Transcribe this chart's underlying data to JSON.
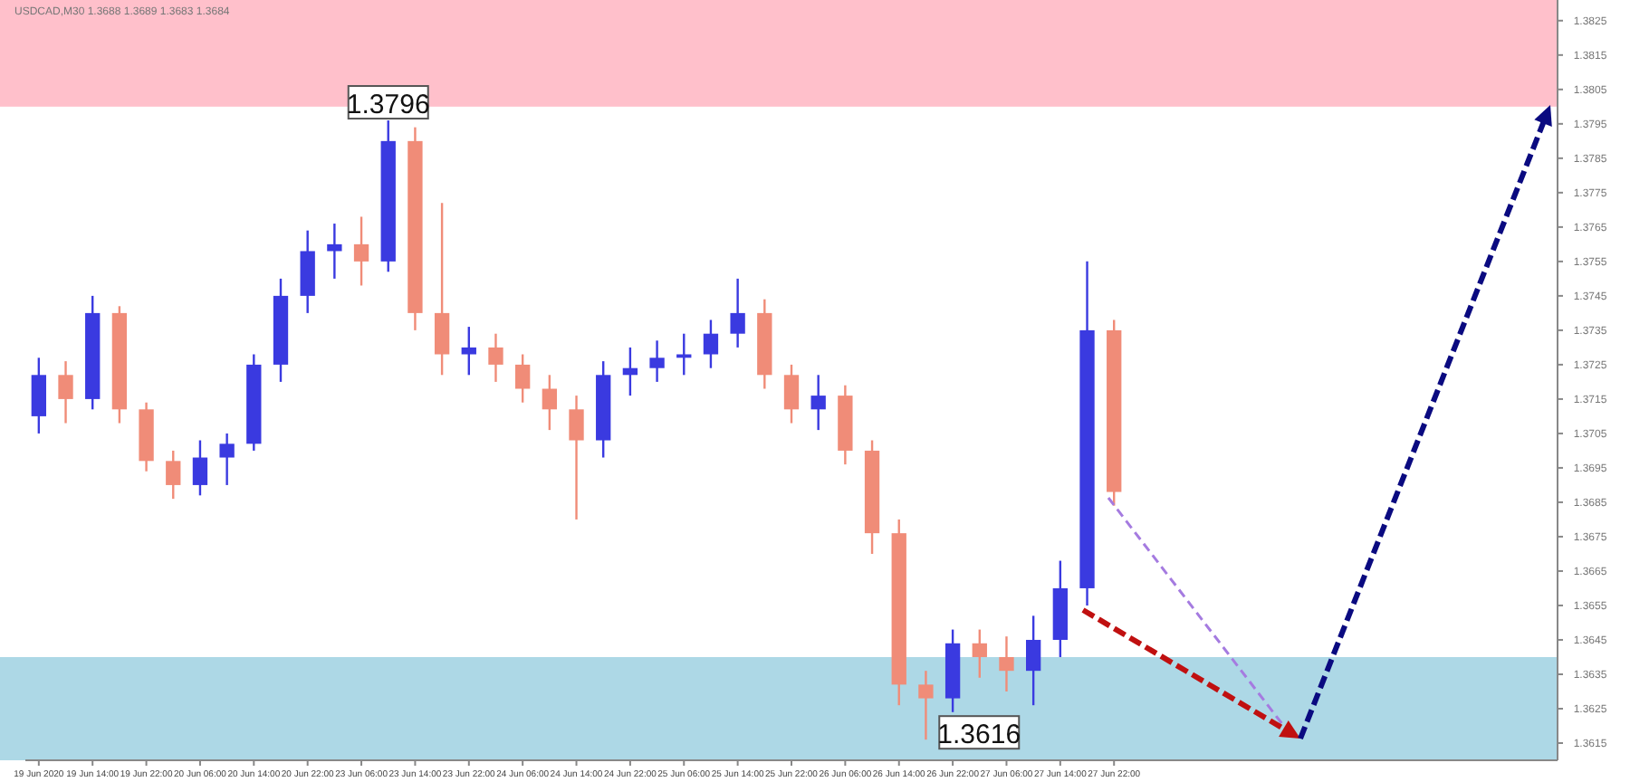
{
  "chart_data": {
    "type": "candlestick",
    "title": "USDCAD,M30 1.3688 1.3689 1.3683 1.3684",
    "categories": [
      "19 Jun 2020",
      null,
      "19 Jun 14:00",
      null,
      "19 Jun 22:00",
      null,
      "20 Jun 06:00",
      null,
      "20 Jun 14:00",
      null,
      "20 Jun 22:00",
      null,
      "23 Jun 06:00",
      null,
      "23 Jun 14:00",
      null,
      "23 Jun 22:00",
      null,
      "24 Jun 06:00",
      null,
      "24 Jun 14:00",
      null,
      "24 Jun 22:00",
      null,
      "25 Jun 06:00",
      null,
      "25 Jun 14:00",
      null,
      "25 Jun 22:00",
      null,
      "26 Jun 06:00",
      null,
      "26 Jun 14:00",
      null,
      "26 Jun 22:00",
      null,
      "27 Jun 06:00",
      null,
      "27 Jun 14:00",
      null,
      "27 Jun 22:00",
      null,
      null,
      null,
      null,
      null,
      null,
      null,
      null,
      null,
      null,
      null,
      null,
      null,
      null,
      null,
      null
    ],
    "ohlc": [
      [
        1.371,
        1.3727,
        1.3705,
        1.3722
      ],
      [
        1.3722,
        1.3726,
        1.3708,
        1.3715
      ],
      [
        1.3715,
        1.3745,
        1.3712,
        1.374
      ],
      [
        1.374,
        1.3742,
        1.3708,
        1.3712
      ],
      [
        1.3712,
        1.3714,
        1.3694,
        1.3697
      ],
      [
        1.3697,
        1.37,
        1.3686,
        1.369
      ],
      [
        1.369,
        1.3703,
        1.3687,
        1.3698
      ],
      [
        1.3698,
        1.3705,
        1.369,
        1.3702
      ],
      [
        1.3702,
        1.3728,
        1.37,
        1.3725
      ],
      [
        1.3725,
        1.375,
        1.372,
        1.3745
      ],
      [
        1.3745,
        1.3764,
        1.374,
        1.3758
      ],
      [
        1.3758,
        1.3766,
        1.375,
        1.376
      ],
      [
        1.376,
        1.3768,
        1.3748,
        1.3755
      ],
      [
        1.3755,
        1.3796,
        1.3752,
        1.379
      ],
      [
        1.379,
        1.3794,
        1.3735,
        1.374
      ],
      [
        1.374,
        1.3772,
        1.3722,
        1.3728
      ],
      [
        1.3728,
        1.3736,
        1.3722,
        1.373
      ],
      [
        1.373,
        1.3734,
        1.372,
        1.3725
      ],
      [
        1.3725,
        1.3728,
        1.3714,
        1.3718
      ],
      [
        1.3718,
        1.3722,
        1.3706,
        1.3712
      ],
      [
        1.3712,
        1.3716,
        1.368,
        1.3703
      ],
      [
        1.3703,
        1.3726,
        1.3698,
        1.3722
      ],
      [
        1.3722,
        1.373,
        1.3716,
        1.3724
      ],
      [
        1.3724,
        1.3732,
        1.372,
        1.3727
      ],
      [
        1.3727,
        1.3734,
        1.3722,
        1.3728
      ],
      [
        1.3728,
        1.3738,
        1.3724,
        1.3734
      ],
      [
        1.3734,
        1.375,
        1.373,
        1.374
      ],
      [
        1.374,
        1.3744,
        1.3718,
        1.3722
      ],
      [
        1.3722,
        1.3725,
        1.3708,
        1.3712
      ],
      [
        1.3712,
        1.3722,
        1.3706,
        1.3716
      ],
      [
        1.3716,
        1.3719,
        1.3696,
        1.37
      ],
      [
        1.37,
        1.3703,
        1.367,
        1.3676
      ],
      [
        1.3676,
        1.368,
        1.3626,
        1.3632
      ],
      [
        1.3632,
        1.3636,
        1.3616,
        1.3628
      ],
      [
        1.3628,
        1.3648,
        1.3624,
        1.3644
      ],
      [
        1.3644,
        1.3648,
        1.3634,
        1.364
      ],
      [
        1.364,
        1.3646,
        1.363,
        1.3636
      ],
      [
        1.3636,
        1.3652,
        1.3626,
        1.3645
      ],
      [
        1.3645,
        1.3668,
        1.364,
        1.366
      ],
      [
        1.366,
        1.3755,
        1.3655,
        1.3735
      ],
      [
        1.3735,
        1.3738,
        1.3684,
        1.3688
      ],
      null,
      null,
      null,
      null,
      null,
      null,
      null,
      null,
      null,
      null,
      null,
      null,
      null,
      null,
      null,
      null
    ],
    "colors": [
      "#3a3ae0",
      "#f08c78",
      "#3a3ae0",
      "#f08c78",
      "#f08c78",
      "#f08c78",
      "#3a3ae0",
      "#3a3ae0",
      "#3a3ae0",
      "#3a3ae0",
      "#3a3ae0",
      "#3a3ae0",
      "#f08c78",
      "#3a3ae0",
      "#f08c78",
      "#f08c78",
      "#3a3ae0",
      "#f08c78",
      "#f08c78",
      "#f08c78",
      "#f08c78",
      "#3a3ae0",
      "#3a3ae0",
      "#3a3ae0",
      "#3a3ae0",
      "#3a3ae0",
      "#3a3ae0",
      "#f08c78",
      "#f08c78",
      "#3a3ae0",
      "#f08c78",
      "#f08c78",
      "#f08c78",
      "#f08c78",
      "#3a3ae0",
      "#f08c78",
      "#f08c78",
      "#3a3ae0",
      "#3a3ae0",
      "#3a3ae0",
      "#f08c78",
      null,
      null,
      null,
      null,
      null,
      null,
      null,
      null,
      null,
      null,
      null,
      null,
      null,
      null,
      null,
      null
    ],
    "ylim": [
      1.361,
      1.3831
    ],
    "yticks": [
      1.3615,
      1.3625,
      1.3635,
      1.3645,
      1.3655,
      1.3665,
      1.3675,
      1.3685,
      1.3695,
      1.3705,
      1.3715,
      1.3725,
      1.3735,
      1.3745,
      1.3755,
      1.3765,
      1.3775,
      1.3785,
      1.3795,
      1.3805,
      1.3815,
      1.3825
    ],
    "bands": [
      {
        "axis": "y",
        "from": 1.38,
        "to": 1.3831,
        "color": "#ffc0cb"
      },
      {
        "axis": "y",
        "from": 1.361,
        "to": 1.364,
        "color": "#add8e6"
      }
    ],
    "annotations": [
      "1.3796",
      "1.3616"
    ],
    "grid": false
  }
}
